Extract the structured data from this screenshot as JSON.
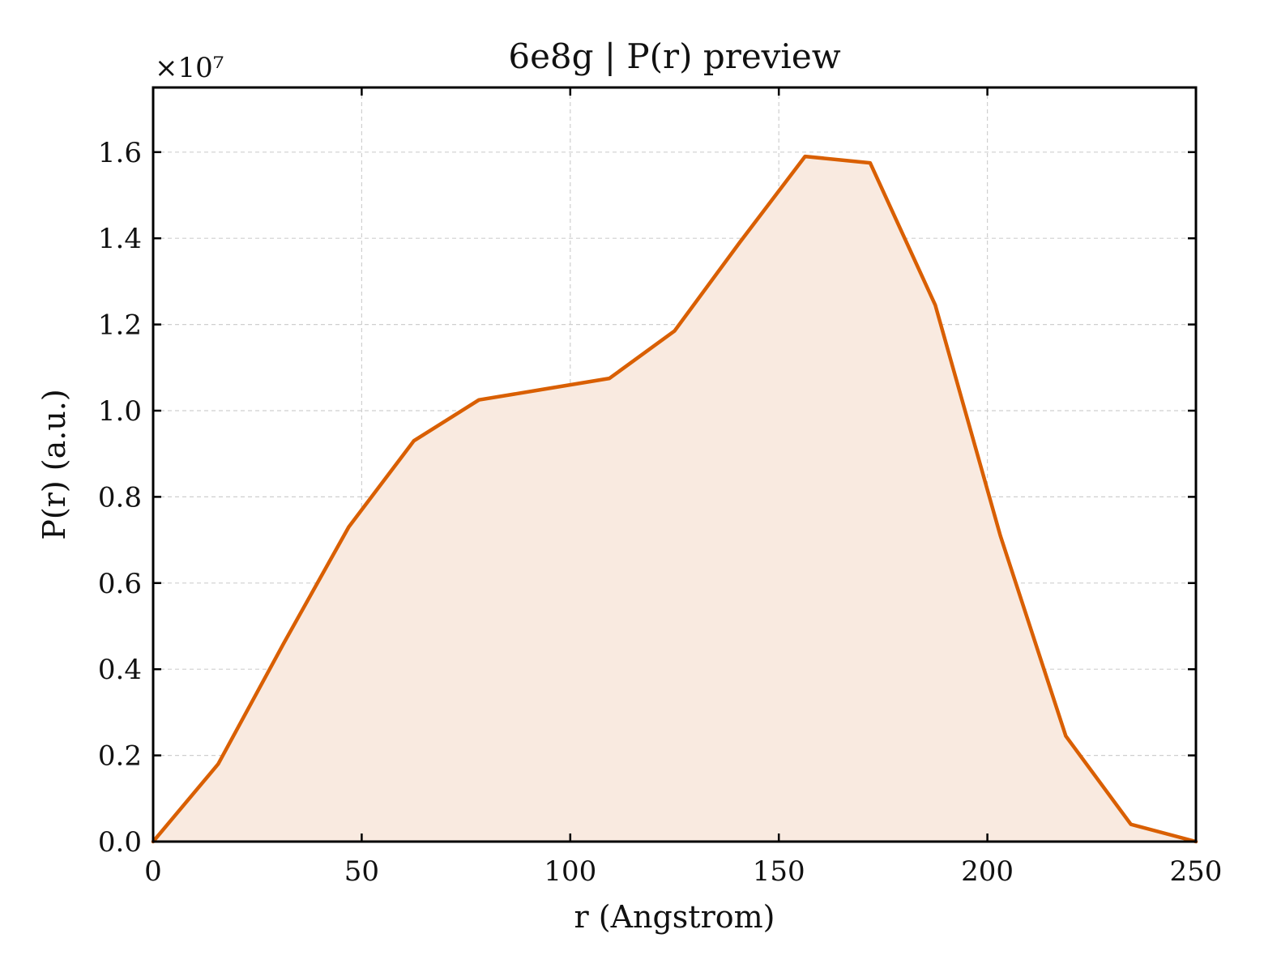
{
  "chart_data": {
    "type": "area",
    "title": "6e8g | P(r) preview",
    "xlabel": "r (Angstrom)",
    "ylabel": "P(r) (a.u.)",
    "y_multiplier": "×10⁷",
    "xlim": [
      0,
      250
    ],
    "ylim": [
      0,
      1.75
    ],
    "x_ticks": [
      0,
      50,
      100,
      150,
      200,
      250
    ],
    "y_ticks": [
      0.0,
      0.2,
      0.4,
      0.6,
      0.8,
      1.0,
      1.2,
      1.4,
      1.6
    ],
    "x_tick_labels": [
      "0",
      "50",
      "100",
      "150",
      "200",
      "250"
    ],
    "y_tick_labels": [
      "0.0",
      "0.2",
      "0.4",
      "0.6",
      "0.8",
      "1.0",
      "1.2",
      "1.4",
      "1.6"
    ],
    "grid": true,
    "series": [
      {
        "x": [
          0,
          15.6,
          31.3,
          46.9,
          62.5,
          78.1,
          93.8,
          109.4,
          125.0,
          140.6,
          156.3,
          171.9,
          187.5,
          203.1,
          218.8,
          234.4,
          250.0
        ],
        "y": [
          0.0,
          0.18,
          0.46,
          0.73,
          0.93,
          1.025,
          1.05,
          1.075,
          1.185,
          1.39,
          1.59,
          1.575,
          1.245,
          0.71,
          0.245,
          0.04,
          0.0
        ],
        "color": "#d95f02",
        "fill": "#f9eae0"
      }
    ]
  }
}
